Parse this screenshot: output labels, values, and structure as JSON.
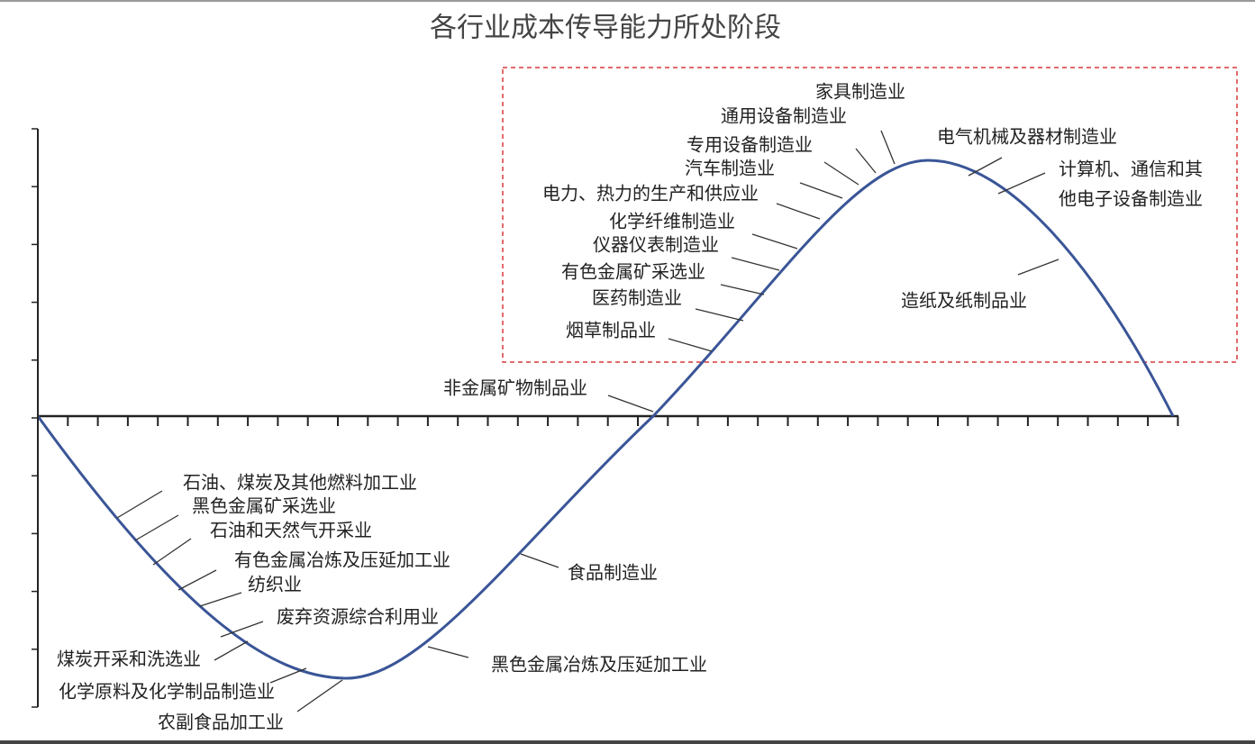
{
  "title": "各行业成本传导能力所处阶段",
  "labels": [
    {
      "text": "家具制造业"
    },
    {
      "text": "通用设备制造业"
    },
    {
      "text": "专用设备制造业"
    },
    {
      "text": "汽车制造业"
    },
    {
      "text": "电力、热力的生产和供应业"
    },
    {
      "text": "化学纤维制造业"
    },
    {
      "text": "仪器仪表制造业"
    },
    {
      "text": "有色金属矿采选业"
    },
    {
      "text": "医药制造业"
    },
    {
      "text": "烟草制品业"
    },
    {
      "text": "非金属矿物制品业"
    },
    {
      "text": "电气机械及器材制造业"
    },
    {
      "lines": [
        "计算机、通信和其",
        "他电子设备制造业"
      ]
    },
    {
      "text": "造纸及纸制品业"
    },
    {
      "text": "石油、煤炭及其他燃料加工业"
    },
    {
      "text": "黑色金属矿采选业"
    },
    {
      "text": "石油和天然气开采业"
    },
    {
      "text": "有色金属冶炼及压延加工业"
    },
    {
      "text": "纺织业"
    },
    {
      "text": "废弃资源综合利用业"
    },
    {
      "text": "煤炭开采和洗选业"
    },
    {
      "text": "化学原料及化学制品制造业"
    },
    {
      "text": "农副食品加工业"
    },
    {
      "text": "黑色金属冶炼及压延加工业"
    },
    {
      "text": "食品制造业"
    }
  ]
}
